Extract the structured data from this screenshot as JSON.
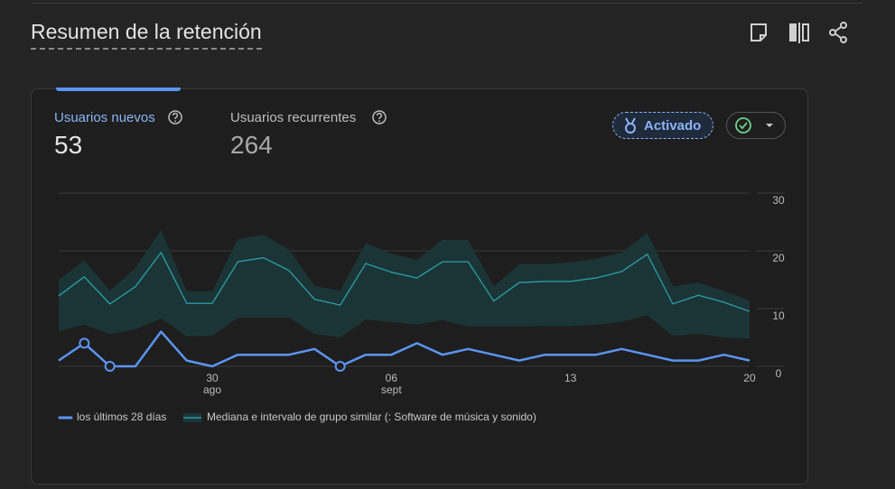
{
  "header": {
    "title": "Resumen de la retención"
  },
  "tabs": [
    {
      "label": "Usuarios nuevos",
      "value": 53
    },
    {
      "label": "Usuarios recurrentes",
      "value": 264
    }
  ],
  "badge": {
    "label": "Activado"
  },
  "chart_data": {
    "type": "line",
    "categories": [
      null,
      null,
      null,
      null,
      null,
      null,
      "30\nago",
      null,
      null,
      null,
      null,
      null,
      null,
      "06\nsept",
      null,
      null,
      null,
      null,
      null,
      null,
      "13",
      null,
      null,
      null,
      null,
      null,
      null,
      "20"
    ],
    "series": [
      {
        "name": "los últimos 28 días",
        "color": "#5b95f3",
        "values": [
          1,
          4,
          0,
          0,
          6,
          1,
          0,
          2,
          2,
          2,
          3,
          0,
          2,
          2,
          4,
          2,
          3,
          2,
          1,
          2,
          2,
          2,
          3,
          2,
          1,
          1,
          2,
          1
        ],
        "highlighted_points": [
          1,
          2,
          11
        ]
      },
      {
        "name": "Mediana e intervalo de grupo similar (: Software de música y sonido)",
        "color": "#2a9ea6",
        "band_color": "#1b3537",
        "values": [
          12.2,
          15.5,
          10.8,
          13.8,
          19.7,
          10.9,
          10.9,
          18.1,
          18.8,
          16.6,
          11.6,
          10.6,
          17.8,
          16.3,
          15.3,
          18.1,
          18.1,
          11.3,
          14.5,
          14.7,
          14.7,
          15.3,
          16.4,
          19.4,
          10.8,
          12.3,
          11.1,
          9.5
        ],
        "upper": [
          15,
          18.3,
          13.1,
          17,
          23.6,
          13,
          13,
          22,
          22.8,
          20.2,
          13.9,
          13.1,
          21.3,
          19.5,
          18.4,
          21.9,
          21.9,
          13.8,
          17.7,
          17.7,
          18,
          18.6,
          19.7,
          23.1,
          13.8,
          14.5,
          13,
          11.4
        ],
        "lower": [
          6.1,
          7.2,
          5.6,
          6.4,
          8.3,
          5.2,
          5.3,
          8.4,
          8.4,
          8.4,
          5.6,
          5,
          8.1,
          7.7,
          7.2,
          8,
          6.9,
          6.9,
          6.9,
          7,
          7,
          7.2,
          7.7,
          8.8,
          5.3,
          5.6,
          5,
          4.8
        ]
      }
    ],
    "ylim": [
      0,
      30
    ],
    "yticks": [
      0,
      10,
      20,
      30
    ],
    "grid": true
  }
}
